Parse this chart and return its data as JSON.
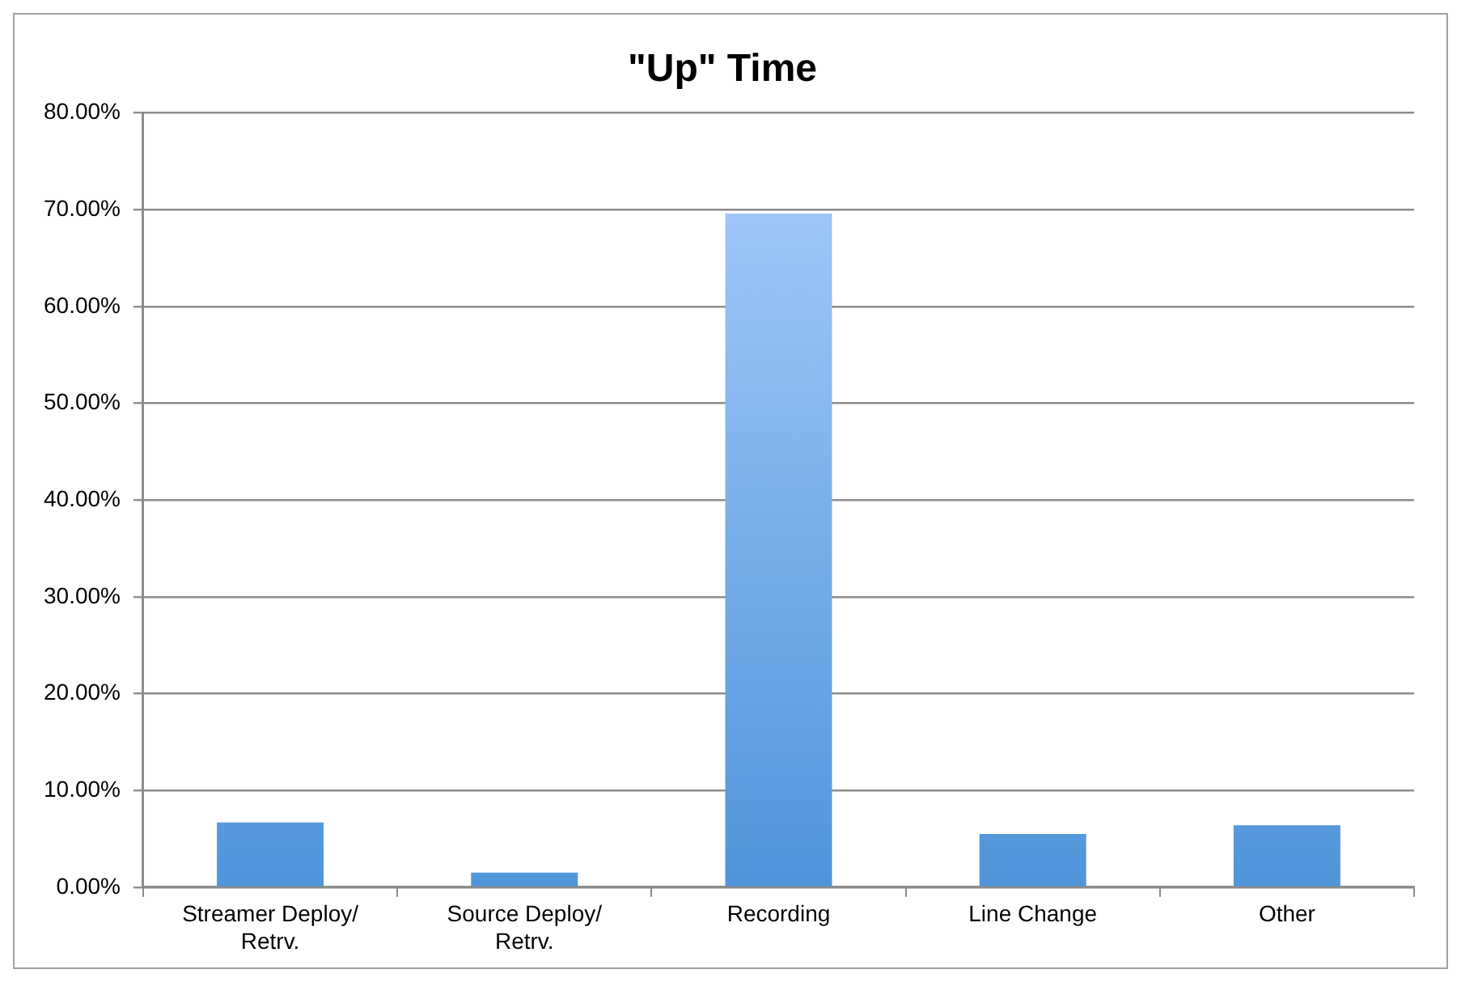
{
  "chart_data": {
    "type": "bar",
    "title": "\"Up\" Time",
    "categories": [
      "Streamer Deploy/ Retrv.",
      "Source Deploy/ Retrv.",
      "Recording",
      "Line Change",
      "Other"
    ],
    "values": [
      6.7,
      1.5,
      69.6,
      5.5,
      6.4
    ],
    "color": "#4f95da",
    "ylim": [
      0,
      80
    ],
    "yticks": [
      {
        "value": 0,
        "label": "0.00%"
      },
      {
        "value": 10,
        "label": "10.00%"
      },
      {
        "value": 20,
        "label": "20.00%"
      },
      {
        "value": 30,
        "label": "30.00%"
      },
      {
        "value": 40,
        "label": "40.00%"
      },
      {
        "value": 50,
        "label": "50.00%"
      },
      {
        "value": 60,
        "label": "60.00%"
      },
      {
        "value": 70,
        "label": "70.00%"
      },
      {
        "value": 80,
        "label": "80.00%"
      }
    ],
    "grid": "y",
    "legend": false
  }
}
